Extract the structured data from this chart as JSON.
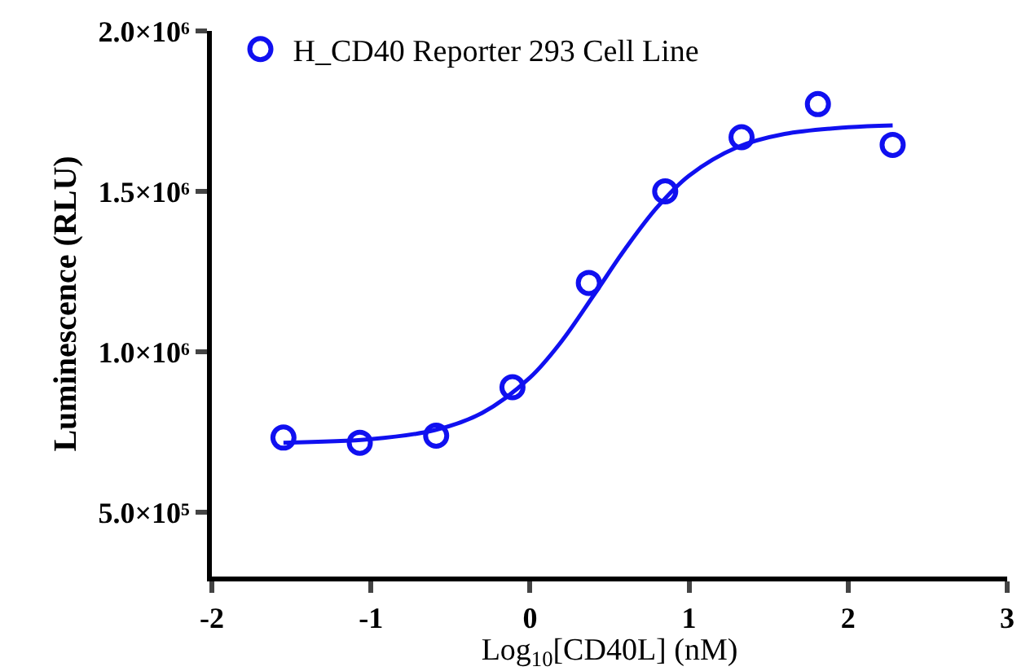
{
  "chart_data": {
    "type": "scatter",
    "xlabel": "Log$_{10}$[CD40L] (nM)",
    "ylabel": "Luminescence (RLU)",
    "xlim": [
      -2,
      3
    ],
    "xticks": [
      -2,
      -1,
      0,
      1,
      2,
      3
    ],
    "ylim": [
      300000,
      2000000
    ],
    "yticks": [
      {
        "value": 500000,
        "label": "5.0×10⁵"
      },
      {
        "value": 1000000,
        "label": "1.0×10⁶"
      },
      {
        "value": 1500000,
        "label": "1.5×10⁶"
      },
      {
        "value": 2000000,
        "label": "2.0×10⁶"
      }
    ],
    "legend": "top left",
    "series": [
      {
        "name": "H_CD40 Reporter 293 Cell Line",
        "marker": "circle",
        "color": "#1010f0",
        "x": [
          -1.55,
          -1.07,
          -0.59,
          -0.11,
          0.37,
          0.85,
          1.33,
          1.81,
          2.28
        ],
        "values": [
          733000,
          717000,
          739000,
          890000,
          1215000,
          1500000,
          1669000,
          1772000,
          1645000
        ]
      },
      {
        "type": "line",
        "marker": "none",
        "color": "#1010f0",
        "x": [
          -1.55,
          -1.0,
          -0.6,
          -0.3,
          0,
          0.2,
          0.4,
          0.6,
          0.8,
          1.0,
          1.3,
          1.6,
          2.0,
          2.28
        ],
        "values": [
          717000,
          728000,
          756000,
          810000,
          920000,
          1034000,
          1176000,
          1322000,
          1451000,
          1549000,
          1637000,
          1679000,
          1700000,
          1706000
        ]
      }
    ]
  }
}
